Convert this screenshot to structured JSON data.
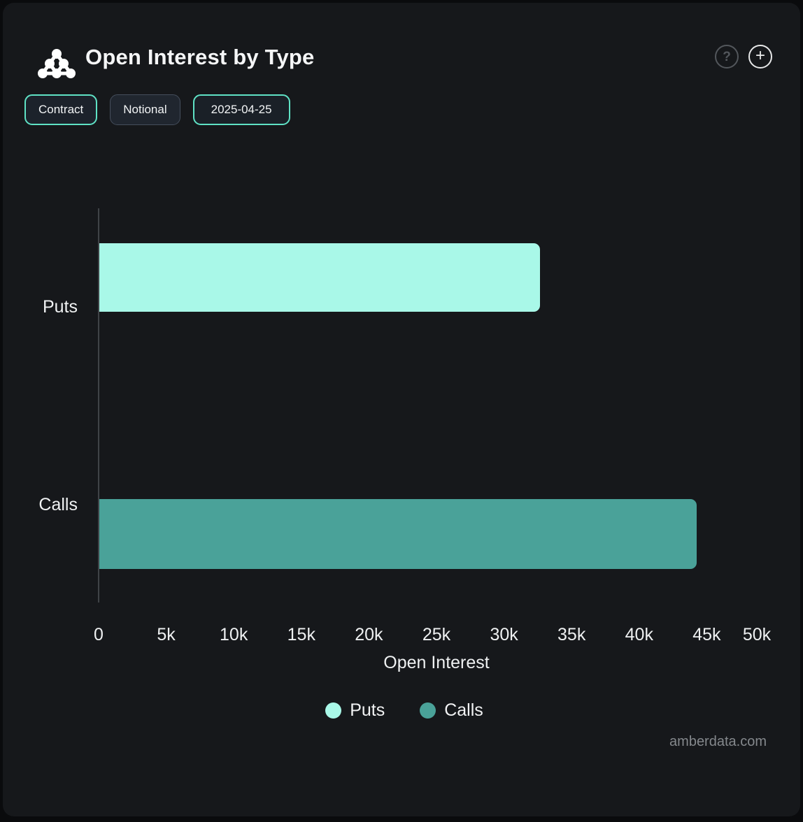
{
  "header": {
    "title": "Open Interest by Type",
    "help_label": "?",
    "plus_label": "+"
  },
  "toolbar": {
    "buttons": [
      {
        "label": "Contract",
        "accent": true,
        "date": false
      },
      {
        "label": "Notional",
        "accent": false,
        "date": false
      },
      {
        "label": "2025-04-25",
        "accent": true,
        "date": true
      }
    ]
  },
  "chart_data": {
    "type": "bar",
    "orientation": "horizontal",
    "title": "Open Interest by Type",
    "categories": [
      "Puts",
      "Calls"
    ],
    "series": [
      {
        "name": "Puts",
        "value": 32600,
        "color": "#a9f8e8"
      },
      {
        "name": "Calls",
        "value": 44200,
        "color": "#4aa299"
      }
    ],
    "xlabel": "Open Interest",
    "ylabel": "",
    "xlim": [
      0,
      50000
    ],
    "x_ticks": [
      "0",
      "5k",
      "10k",
      "15k",
      "20k",
      "25k",
      "30k",
      "35k",
      "40k",
      "45k",
      "50k"
    ],
    "grid": false,
    "legend_position": "bottom",
    "legend": [
      {
        "label": "Puts",
        "color": "#a9f8e8"
      },
      {
        "label": "Calls",
        "color": "#4aa299"
      }
    ]
  },
  "footer": {
    "watermark": "amberdata.com"
  },
  "colors": {
    "background": "#16181b",
    "accent": "#5fe2c5",
    "puts": "#a9f8e8",
    "calls": "#4aa299",
    "axis_line": "#3f4347"
  }
}
